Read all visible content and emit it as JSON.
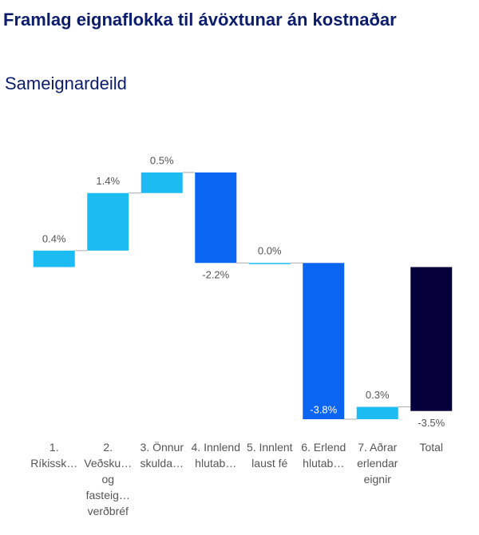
{
  "chart_data": {
    "type": "waterfall",
    "title": "Framlag eignaflokka til ávöxtunar án kostnaðar",
    "subtitle": "Sameignardeild",
    "categories": [
      "1. Ríkissk…",
      "2. Veðsku… og fasteig… verðbréf",
      "3. Önnur skulda…",
      "4. Innlend hlutab…",
      "5. Innlent laust fé",
      "6. Erlend hlutab…",
      "7. Aðrar erlendar eignir",
      "Total"
    ],
    "values": [
      0.4,
      1.4,
      0.5,
      -2.2,
      0.0,
      -3.8,
      0.3,
      -3.5
    ],
    "value_labels": [
      "0.4%",
      "1.4%",
      "0.5%",
      "-2.2%",
      "0.0%",
      "-3.8%",
      "0.3%",
      "-3.5%"
    ],
    "last_is_total": true,
    "colors": {
      "increase": "#1cbcf2",
      "decrease": "#0a66f0",
      "total": "#06003a"
    }
  }
}
